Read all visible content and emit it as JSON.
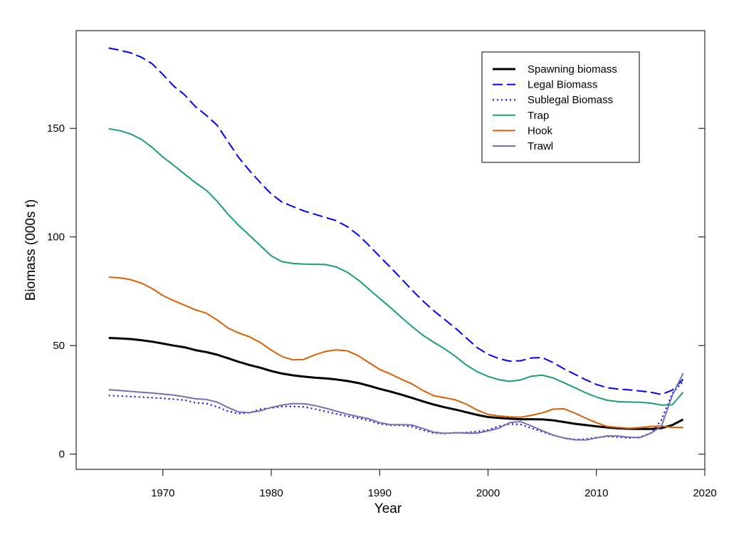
{
  "chart_data": {
    "type": "line",
    "xlabel": "Year",
    "ylabel": "Biomass (000s t)",
    "xlim": [
      1962,
      2020
    ],
    "ylim": [
      -7,
      195
    ],
    "x_ticks": [
      1970,
      1980,
      1990,
      2000,
      2010,
      2020
    ],
    "y_ticks": [
      0,
      50,
      100,
      150
    ],
    "grid": false,
    "legend_position": "top-right",
    "x": [
      1965,
      1966,
      1967,
      1968,
      1969,
      1970,
      1971,
      1972,
      1973,
      1974,
      1975,
      1976,
      1977,
      1978,
      1979,
      1980,
      1981,
      1982,
      1983,
      1984,
      1985,
      1986,
      1987,
      1988,
      1989,
      1990,
      1991,
      1992,
      1993,
      1994,
      1995,
      1996,
      1997,
      1998,
      1999,
      2000,
      2001,
      2002,
      2003,
      2004,
      2005,
      2006,
      2007,
      2008,
      2009,
      2010,
      2011,
      2012,
      2013,
      2014,
      2015,
      2016,
      2017,
      2018
    ],
    "series": [
      {
        "name": "Spawning biomass",
        "color": "#000000",
        "dash": "solid",
        "width": 3,
        "values": [
          53.5,
          53.3,
          53.0,
          52.5,
          51.8,
          50.9,
          50.0,
          49.2,
          47.9,
          47.0,
          45.8,
          44.2,
          42.5,
          41.0,
          39.8,
          38.3,
          37.1,
          36.3,
          35.7,
          35.2,
          34.9,
          34.4,
          33.7,
          32.8,
          31.5,
          30.1,
          28.8,
          27.4,
          25.9,
          24.3,
          22.8,
          21.6,
          20.5,
          19.3,
          18.1,
          17.1,
          16.7,
          16.3,
          16.1,
          16.1,
          16.0,
          15.6,
          14.8,
          14.0,
          13.4,
          12.8,
          12.3,
          11.9,
          11.7,
          11.6,
          11.6,
          12.0,
          13.4,
          16.0
        ]
      },
      {
        "name": "Legal Biomass",
        "color": "#0000ff",
        "dash": "dashed",
        "width": 2,
        "values": [
          187.0,
          186.0,
          184.8,
          182.8,
          179.8,
          174.8,
          169.5,
          165.5,
          160.0,
          156.0,
          151.5,
          144.0,
          136.5,
          130.5,
          125.0,
          119.8,
          116.0,
          114.0,
          112.0,
          110.5,
          109.0,
          107.5,
          104.8,
          101.0,
          96.2,
          91.0,
          86.0,
          80.8,
          75.5,
          70.5,
          66.0,
          62.0,
          58.0,
          53.5,
          49.0,
          46.0,
          44.0,
          42.8,
          43.0,
          44.3,
          44.5,
          42.2,
          39.3,
          36.8,
          34.3,
          32.1,
          30.6,
          30.0,
          29.6,
          29.1,
          28.5,
          27.5,
          29.5,
          34.5
        ]
      },
      {
        "name": "Sublegal Biomass",
        "color": "#0000ff",
        "dash": "dotted",
        "width": 2,
        "values": [
          27.0,
          26.8,
          26.5,
          26.3,
          26.0,
          25.7,
          25.3,
          24.9,
          23.7,
          23.3,
          21.8,
          19.8,
          18.7,
          19.1,
          20.7,
          21.3,
          21.9,
          22.0,
          21.8,
          20.8,
          19.7,
          18.5,
          17.5,
          16.6,
          15.5,
          14.0,
          13.3,
          13.3,
          12.6,
          11.0,
          9.7,
          9.5,
          9.8,
          10.0,
          10.4,
          11.1,
          12.9,
          13.9,
          13.7,
          12.0,
          10.3,
          8.7,
          7.5,
          6.8,
          6.9,
          7.7,
          8.1,
          7.9,
          7.4,
          7.9,
          9.7,
          15.8,
          28.0,
          33.5
        ]
      },
      {
        "name": "Trap",
        "color": "#1b9e77",
        "dash": "solid",
        "width": 2,
        "values": [
          149.8,
          149.0,
          147.5,
          145.0,
          141.3,
          136.8,
          133.0,
          129.0,
          125.0,
          121.5,
          116.5,
          110.5,
          105.3,
          100.7,
          96.0,
          91.3,
          88.6,
          87.8,
          87.5,
          87.4,
          87.3,
          86.2,
          83.8,
          80.3,
          76.0,
          71.7,
          67.5,
          63.0,
          58.7,
          54.7,
          51.5,
          48.5,
          45.0,
          41.0,
          38.0,
          35.8,
          34.3,
          33.5,
          34.2,
          35.9,
          36.4,
          35.1,
          32.9,
          30.6,
          28.3,
          26.3,
          24.8,
          24.2,
          24.0,
          23.9,
          23.5,
          22.6,
          22.7,
          28.5
        ]
      },
      {
        "name": "Hook",
        "color": "#d95f02",
        "dash": "solid",
        "width": 2,
        "values": [
          81.5,
          81.2,
          80.4,
          78.8,
          76.3,
          73.0,
          70.7,
          68.6,
          66.5,
          64.9,
          61.8,
          58.1,
          55.8,
          54.0,
          51.4,
          47.9,
          44.9,
          43.4,
          43.6,
          45.7,
          47.3,
          48.0,
          47.6,
          45.4,
          42.2,
          39.0,
          36.9,
          34.5,
          32.3,
          29.3,
          26.9,
          26.0,
          25.0,
          23.0,
          20.3,
          18.3,
          17.6,
          17.2,
          17.0,
          17.9,
          19.0,
          20.7,
          20.9,
          18.9,
          16.6,
          14.5,
          12.7,
          12.3,
          11.9,
          12.2,
          12.8,
          12.9,
          12.3,
          12.3
        ]
      },
      {
        "name": "Trawl",
        "color": "#7570b3",
        "dash": "solid",
        "width": 2,
        "values": [
          29.7,
          29.3,
          28.9,
          28.5,
          28.2,
          27.7,
          27.2,
          26.4,
          25.5,
          25.2,
          24.0,
          21.5,
          19.4,
          19.1,
          20.0,
          21.5,
          22.6,
          23.3,
          23.2,
          22.4,
          21.2,
          19.8,
          18.4,
          17.3,
          16.3,
          14.5,
          13.6,
          13.6,
          13.4,
          11.8,
          10.1,
          9.6,
          9.9,
          9.7,
          9.7,
          10.7,
          12.0,
          14.5,
          15.0,
          13.0,
          10.8,
          8.8,
          7.4,
          6.6,
          6.5,
          7.5,
          8.4,
          8.3,
          7.8,
          7.6,
          9.6,
          12.8,
          27.0,
          37.3
        ]
      }
    ]
  }
}
